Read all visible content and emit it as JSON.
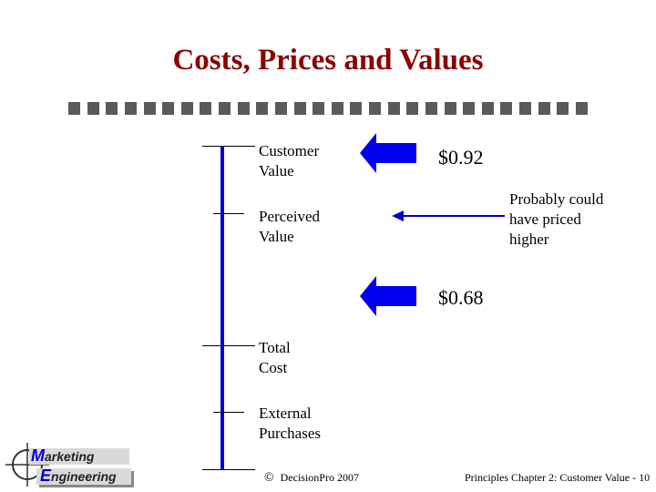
{
  "title": "Costs,  Prices and Values",
  "levels": {
    "customer_value": "Customer\nValue",
    "perceived_value": "Perceived\nValue",
    "total_cost": "Total\nCost",
    "external_purchases": "External\nPurchases"
  },
  "prices": {
    "high": "$0.92",
    "low": "$0.68"
  },
  "annotation": "Probably could\nhave priced\nhigher",
  "footer": {
    "copyright_symbol": "©",
    "copyright": "DecisionPro 2007",
    "page": "Principles Chapter 2: Customer Value - 10"
  },
  "logo": {
    "line1_cap": "M",
    "line1_rest": "arketing",
    "line2_cap": "E",
    "line2_rest": "ngineering"
  },
  "colors": {
    "title": "#8b0000",
    "arrow_fill": "#0000ee",
    "axis": "#0000cc",
    "accent_blue": "#0000cc"
  }
}
